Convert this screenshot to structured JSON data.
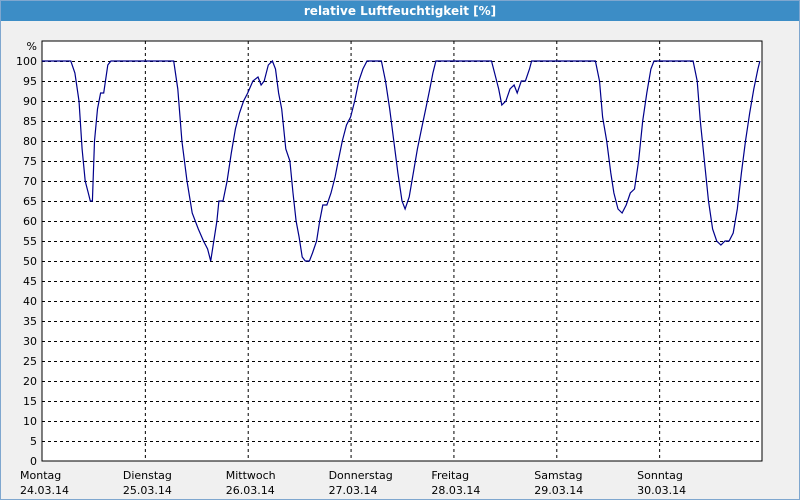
{
  "window": {
    "title": "relative Luftfeuchtigkeit [%]"
  },
  "chart_data": {
    "type": "line",
    "title": "relative Luftfeuchtigkeit [%]",
    "ylabel": "%",
    "ylim": [
      0,
      100
    ],
    "yticks": [
      0,
      5,
      10,
      15,
      20,
      25,
      30,
      35,
      40,
      45,
      50,
      55,
      60,
      65,
      70,
      75,
      80,
      85,
      90,
      95,
      100
    ],
    "xlim": [
      0,
      7
    ],
    "grid": true,
    "x_categories": [
      {
        "day": "Montag",
        "date": "24.03.14"
      },
      {
        "day": "Dienstag",
        "date": "25.03.14"
      },
      {
        "day": "Mittwoch",
        "date": "26.03.14"
      },
      {
        "day": "Donnerstag",
        "date": "27.03.14"
      },
      {
        "day": "Freitag",
        "date": "28.03.14"
      },
      {
        "day": "Samstag",
        "date": "29.03.14"
      },
      {
        "day": "Sonntag",
        "date": "30.03.14"
      }
    ],
    "series": [
      {
        "color": "#00008b",
        "points": [
          [
            0.0,
            100
          ],
          [
            0.28,
            100
          ],
          [
            0.32,
            97
          ],
          [
            0.36,
            90
          ],
          [
            0.39,
            78
          ],
          [
            0.42,
            70
          ],
          [
            0.45,
            67
          ],
          [
            0.47,
            65
          ],
          [
            0.49,
            65
          ],
          [
            0.51,
            80
          ],
          [
            0.54,
            88
          ],
          [
            0.57,
            92
          ],
          [
            0.6,
            92
          ],
          [
            0.64,
            99
          ],
          [
            0.67,
            100
          ],
          [
            1.0,
            100
          ],
          [
            1.28,
            100
          ],
          [
            1.32,
            93
          ],
          [
            1.36,
            80
          ],
          [
            1.41,
            70
          ],
          [
            1.46,
            62
          ],
          [
            1.52,
            58
          ],
          [
            1.57,
            55
          ],
          [
            1.61,
            53
          ],
          [
            1.64,
            50
          ],
          [
            1.67,
            55
          ],
          [
            1.7,
            60
          ],
          [
            1.72,
            65
          ],
          [
            1.76,
            65
          ],
          [
            1.8,
            70
          ],
          [
            1.84,
            77
          ],
          [
            1.88,
            83
          ],
          [
            1.92,
            87
          ],
          [
            1.96,
            90
          ],
          [
            2.0,
            92
          ],
          [
            2.05,
            95
          ],
          [
            2.1,
            96
          ],
          [
            2.13,
            94
          ],
          [
            2.16,
            95
          ],
          [
            2.2,
            99
          ],
          [
            2.24,
            100
          ],
          [
            2.27,
            98
          ],
          [
            2.3,
            92
          ],
          [
            2.33,
            88
          ],
          [
            2.37,
            78
          ],
          [
            2.41,
            75
          ],
          [
            2.44,
            67
          ],
          [
            2.47,
            60
          ],
          [
            2.5,
            56
          ],
          [
            2.53,
            51
          ],
          [
            2.56,
            50
          ],
          [
            2.6,
            50
          ],
          [
            2.63,
            52
          ],
          [
            2.67,
            55
          ],
          [
            2.7,
            60
          ],
          [
            2.73,
            64
          ],
          [
            2.77,
            64
          ],
          [
            2.81,
            67
          ],
          [
            2.85,
            71
          ],
          [
            2.88,
            75
          ],
          [
            2.92,
            80
          ],
          [
            2.96,
            84
          ],
          [
            3.0,
            86
          ],
          [
            3.04,
            90
          ],
          [
            3.08,
            95
          ],
          [
            3.12,
            98
          ],
          [
            3.16,
            100
          ],
          [
            3.3,
            100
          ],
          [
            3.34,
            95
          ],
          [
            3.38,
            88
          ],
          [
            3.42,
            80
          ],
          [
            3.46,
            72
          ],
          [
            3.5,
            65
          ],
          [
            3.53,
            63
          ],
          [
            3.57,
            66
          ],
          [
            3.61,
            72
          ],
          [
            3.65,
            78
          ],
          [
            3.69,
            83
          ],
          [
            3.73,
            88
          ],
          [
            3.77,
            93
          ],
          [
            3.8,
            97
          ],
          [
            3.83,
            100
          ],
          [
            4.0,
            100
          ],
          [
            4.37,
            100
          ],
          [
            4.4,
            97
          ],
          [
            4.44,
            93
          ],
          [
            4.47,
            89
          ],
          [
            4.51,
            90
          ],
          [
            4.55,
            93
          ],
          [
            4.59,
            94
          ],
          [
            4.62,
            92
          ],
          [
            4.66,
            95
          ],
          [
            4.7,
            95
          ],
          [
            4.74,
            98
          ],
          [
            4.76,
            100
          ],
          [
            5.0,
            100
          ],
          [
            5.38,
            100
          ],
          [
            5.42,
            95
          ],
          [
            5.45,
            86
          ],
          [
            5.49,
            80
          ],
          [
            5.53,
            72
          ],
          [
            5.56,
            67
          ],
          [
            5.6,
            63
          ],
          [
            5.64,
            62
          ],
          [
            5.68,
            64
          ],
          [
            5.72,
            67
          ],
          [
            5.76,
            68
          ],
          [
            5.8,
            75
          ],
          [
            5.84,
            85
          ],
          [
            5.88,
            92
          ],
          [
            5.92,
            98
          ],
          [
            5.95,
            100
          ],
          [
            6.0,
            100
          ],
          [
            6.33,
            100
          ],
          [
            6.37,
            95
          ],
          [
            6.4,
            85
          ],
          [
            6.44,
            75
          ],
          [
            6.48,
            65
          ],
          [
            6.52,
            58
          ],
          [
            6.56,
            55
          ],
          [
            6.6,
            54
          ],
          [
            6.64,
            55
          ],
          [
            6.68,
            55
          ],
          [
            6.72,
            57
          ],
          [
            6.76,
            63
          ],
          [
            6.8,
            72
          ],
          [
            6.84,
            80
          ],
          [
            6.88,
            87
          ],
          [
            6.92,
            93
          ],
          [
            6.96,
            98
          ],
          [
            6.98,
            100
          ]
        ]
      }
    ]
  }
}
